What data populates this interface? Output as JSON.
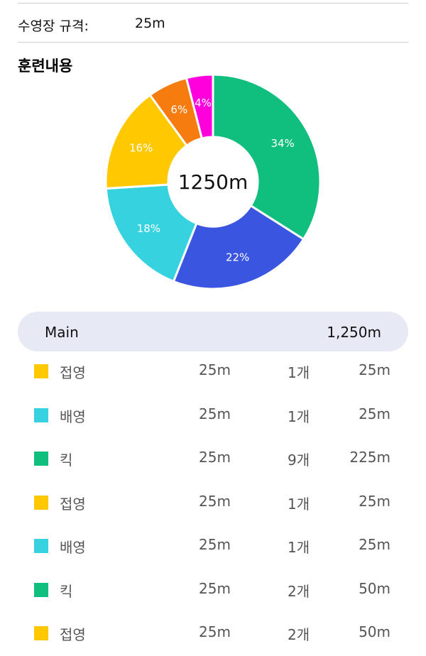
{
  "pool": {
    "label": "수영장 규격:",
    "value": "25m"
  },
  "section_title": "훈련내용",
  "colors": {
    "green": "#10bf7e",
    "blue": "#3a55e0",
    "cyan": "#36d2e0",
    "yellow": "#ffc800",
    "orange": "#f67c10",
    "magenta": "#ff00dd"
  },
  "chart_data": {
    "type": "pie",
    "center_label": "1250m",
    "slices": [
      {
        "label": "34%",
        "value": 34,
        "color": "#10bf7e"
      },
      {
        "label": "22%",
        "value": 22,
        "color": "#3a55e0"
      },
      {
        "label": "18%",
        "value": 18,
        "color": "#36d2e0"
      },
      {
        "label": "16%",
        "value": 16,
        "color": "#ffc800"
      },
      {
        "label": "6%",
        "value": 6,
        "color": "#f67c10"
      },
      {
        "label": "4%",
        "value": 4,
        "color": "#ff00dd"
      }
    ]
  },
  "summary": {
    "name": "Main",
    "total": "1,250m"
  },
  "rows": [
    {
      "stroke": "접영",
      "distance": "25m",
      "count": "1개",
      "total": "25m",
      "color": "#ffc800"
    },
    {
      "stroke": "배영",
      "distance": "25m",
      "count": "1개",
      "total": "25m",
      "color": "#36d2e0"
    },
    {
      "stroke": "킥",
      "distance": "25m",
      "count": "9개",
      "total": "225m",
      "color": "#10bf7e"
    },
    {
      "stroke": "접영",
      "distance": "25m",
      "count": "1개",
      "total": "25m",
      "color": "#ffc800"
    },
    {
      "stroke": "배영",
      "distance": "25m",
      "count": "1개",
      "total": "25m",
      "color": "#36d2e0"
    },
    {
      "stroke": "킥",
      "distance": "25m",
      "count": "2개",
      "total": "50m",
      "color": "#10bf7e"
    },
    {
      "stroke": "접영",
      "distance": "25m",
      "count": "2개",
      "total": "50m",
      "color": "#ffc800"
    }
  ]
}
